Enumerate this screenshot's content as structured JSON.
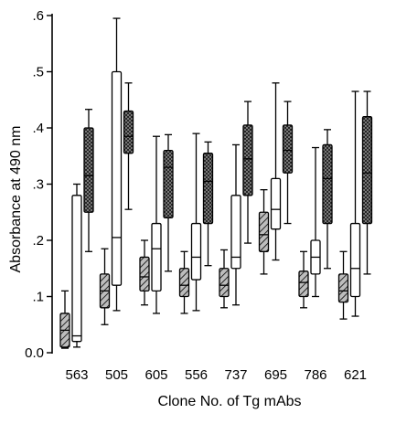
{
  "chart_data": {
    "type": "boxplot",
    "xlabel": "Clone No. of Tg mAbs",
    "ylabel": "Absorbance at 490 nm",
    "ylim": [
      0,
      0.6
    ],
    "y_ticks": [
      {
        "value": 0.0,
        "label": "0.0"
      },
      {
        "value": 0.1,
        "label": ".1"
      },
      {
        "value": 0.2,
        "label": ".2"
      },
      {
        "value": 0.3,
        "label": ".3"
      },
      {
        "value": 0.4,
        "label": ".4"
      },
      {
        "value": 0.5,
        "label": ".5"
      },
      {
        "value": 0.6,
        "label": ".6"
      }
    ],
    "categories": [
      "563",
      "505",
      "605",
      "556",
      "737",
      "695",
      "786",
      "621"
    ],
    "grid": false,
    "legend": "none",
    "series": [
      {
        "pattern": "hatched",
        "fill": "#8a8a8a",
        "boxes": [
          {
            "whisker_low": 0.008,
            "q1": 0.01,
            "median": 0.04,
            "q3": 0.07,
            "whisker_high": 0.11
          },
          {
            "whisker_low": 0.05,
            "q1": 0.08,
            "median": 0.11,
            "q3": 0.14,
            "whisker_high": 0.185
          },
          {
            "whisker_low": 0.085,
            "q1": 0.11,
            "median": 0.135,
            "q3": 0.17,
            "whisker_high": 0.2
          },
          {
            "whisker_low": 0.07,
            "q1": 0.1,
            "median": 0.12,
            "q3": 0.15,
            "whisker_high": 0.18
          },
          {
            "whisker_low": 0.08,
            "q1": 0.1,
            "median": 0.12,
            "q3": 0.15,
            "whisker_high": 0.183
          },
          {
            "whisker_low": 0.14,
            "q1": 0.18,
            "median": 0.21,
            "q3": 0.25,
            "whisker_high": 0.29
          },
          {
            "whisker_low": 0.08,
            "q1": 0.1,
            "median": 0.125,
            "q3": 0.145,
            "whisker_high": 0.18
          },
          {
            "whisker_low": 0.06,
            "q1": 0.09,
            "median": 0.11,
            "q3": 0.14,
            "whisker_high": 0.18
          }
        ]
      },
      {
        "pattern": "open",
        "fill": "#ffffff",
        "boxes": [
          {
            "whisker_low": 0.01,
            "q1": 0.02,
            "median": 0.03,
            "q3": 0.28,
            "whisker_high": 0.3
          },
          {
            "whisker_low": 0.075,
            "q1": 0.12,
            "median": 0.205,
            "q3": 0.5,
            "whisker_high": 0.595
          },
          {
            "whisker_low": 0.07,
            "q1": 0.11,
            "median": 0.185,
            "q3": 0.23,
            "whisker_high": 0.385
          },
          {
            "whisker_low": 0.075,
            "q1": 0.13,
            "median": 0.17,
            "q3": 0.23,
            "whisker_high": 0.39
          },
          {
            "whisker_low": 0.085,
            "q1": 0.15,
            "median": 0.17,
            "q3": 0.28,
            "whisker_high": 0.37
          },
          {
            "whisker_low": 0.165,
            "q1": 0.22,
            "median": 0.255,
            "q3": 0.31,
            "whisker_high": 0.48
          },
          {
            "whisker_low": 0.1,
            "q1": 0.14,
            "median": 0.17,
            "q3": 0.2,
            "whisker_high": 0.365
          },
          {
            "whisker_low": 0.065,
            "q1": 0.1,
            "median": 0.15,
            "q3": 0.23,
            "whisker_high": 0.465
          }
        ]
      },
      {
        "pattern": "crosshatched",
        "fill": "#555555",
        "boxes": [
          {
            "whisker_low": 0.18,
            "q1": 0.25,
            "median": 0.315,
            "q3": 0.4,
            "whisker_high": 0.433
          },
          {
            "whisker_low": 0.255,
            "q1": 0.355,
            "median": 0.385,
            "q3": 0.43,
            "whisker_high": 0.48
          },
          {
            "whisker_low": 0.145,
            "q1": 0.24,
            "median": 0.33,
            "q3": 0.36,
            "whisker_high": 0.388
          },
          {
            "whisker_low": 0.155,
            "q1": 0.23,
            "median": 0.305,
            "q3": 0.355,
            "whisker_high": 0.375
          },
          {
            "whisker_low": 0.195,
            "q1": 0.28,
            "median": 0.345,
            "q3": 0.405,
            "whisker_high": 0.447
          },
          {
            "whisker_low": 0.23,
            "q1": 0.32,
            "median": 0.36,
            "q3": 0.405,
            "whisker_high": 0.447
          },
          {
            "whisker_low": 0.15,
            "q1": 0.23,
            "median": 0.31,
            "q3": 0.37,
            "whisker_high": 0.397
          },
          {
            "whisker_low": 0.14,
            "q1": 0.23,
            "median": 0.32,
            "q3": 0.42,
            "whisker_high": 0.465
          }
        ]
      }
    ]
  }
}
